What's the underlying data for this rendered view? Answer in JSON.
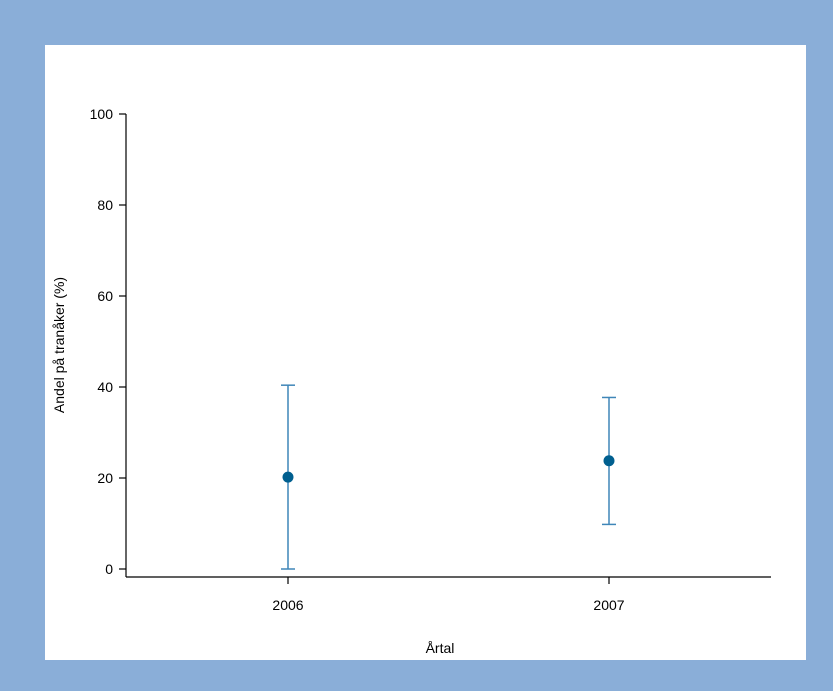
{
  "chart_data": {
    "type": "scatter",
    "title": "",
    "xlabel": "Årtal",
    "ylabel": "Andel på tranåker (%)",
    "categories": [
      "2006",
      "2007"
    ],
    "series": [
      {
        "values": [
          20.2,
          23.8
        ],
        "error_low": [
          0,
          9.8
        ],
        "error_high": [
          40.4,
          37.7
        ]
      }
    ],
    "ylim": [
      0,
      100
    ],
    "yticks": [
      "0",
      "20",
      "40",
      "60",
      "80",
      "100"
    ],
    "grid": false,
    "legend": "none",
    "colors": {
      "point": "#005f8f",
      "errorbar": "#3f86b8",
      "axis": "#000000",
      "frame": "#8aaed8",
      "background": "#ffffff"
    }
  }
}
